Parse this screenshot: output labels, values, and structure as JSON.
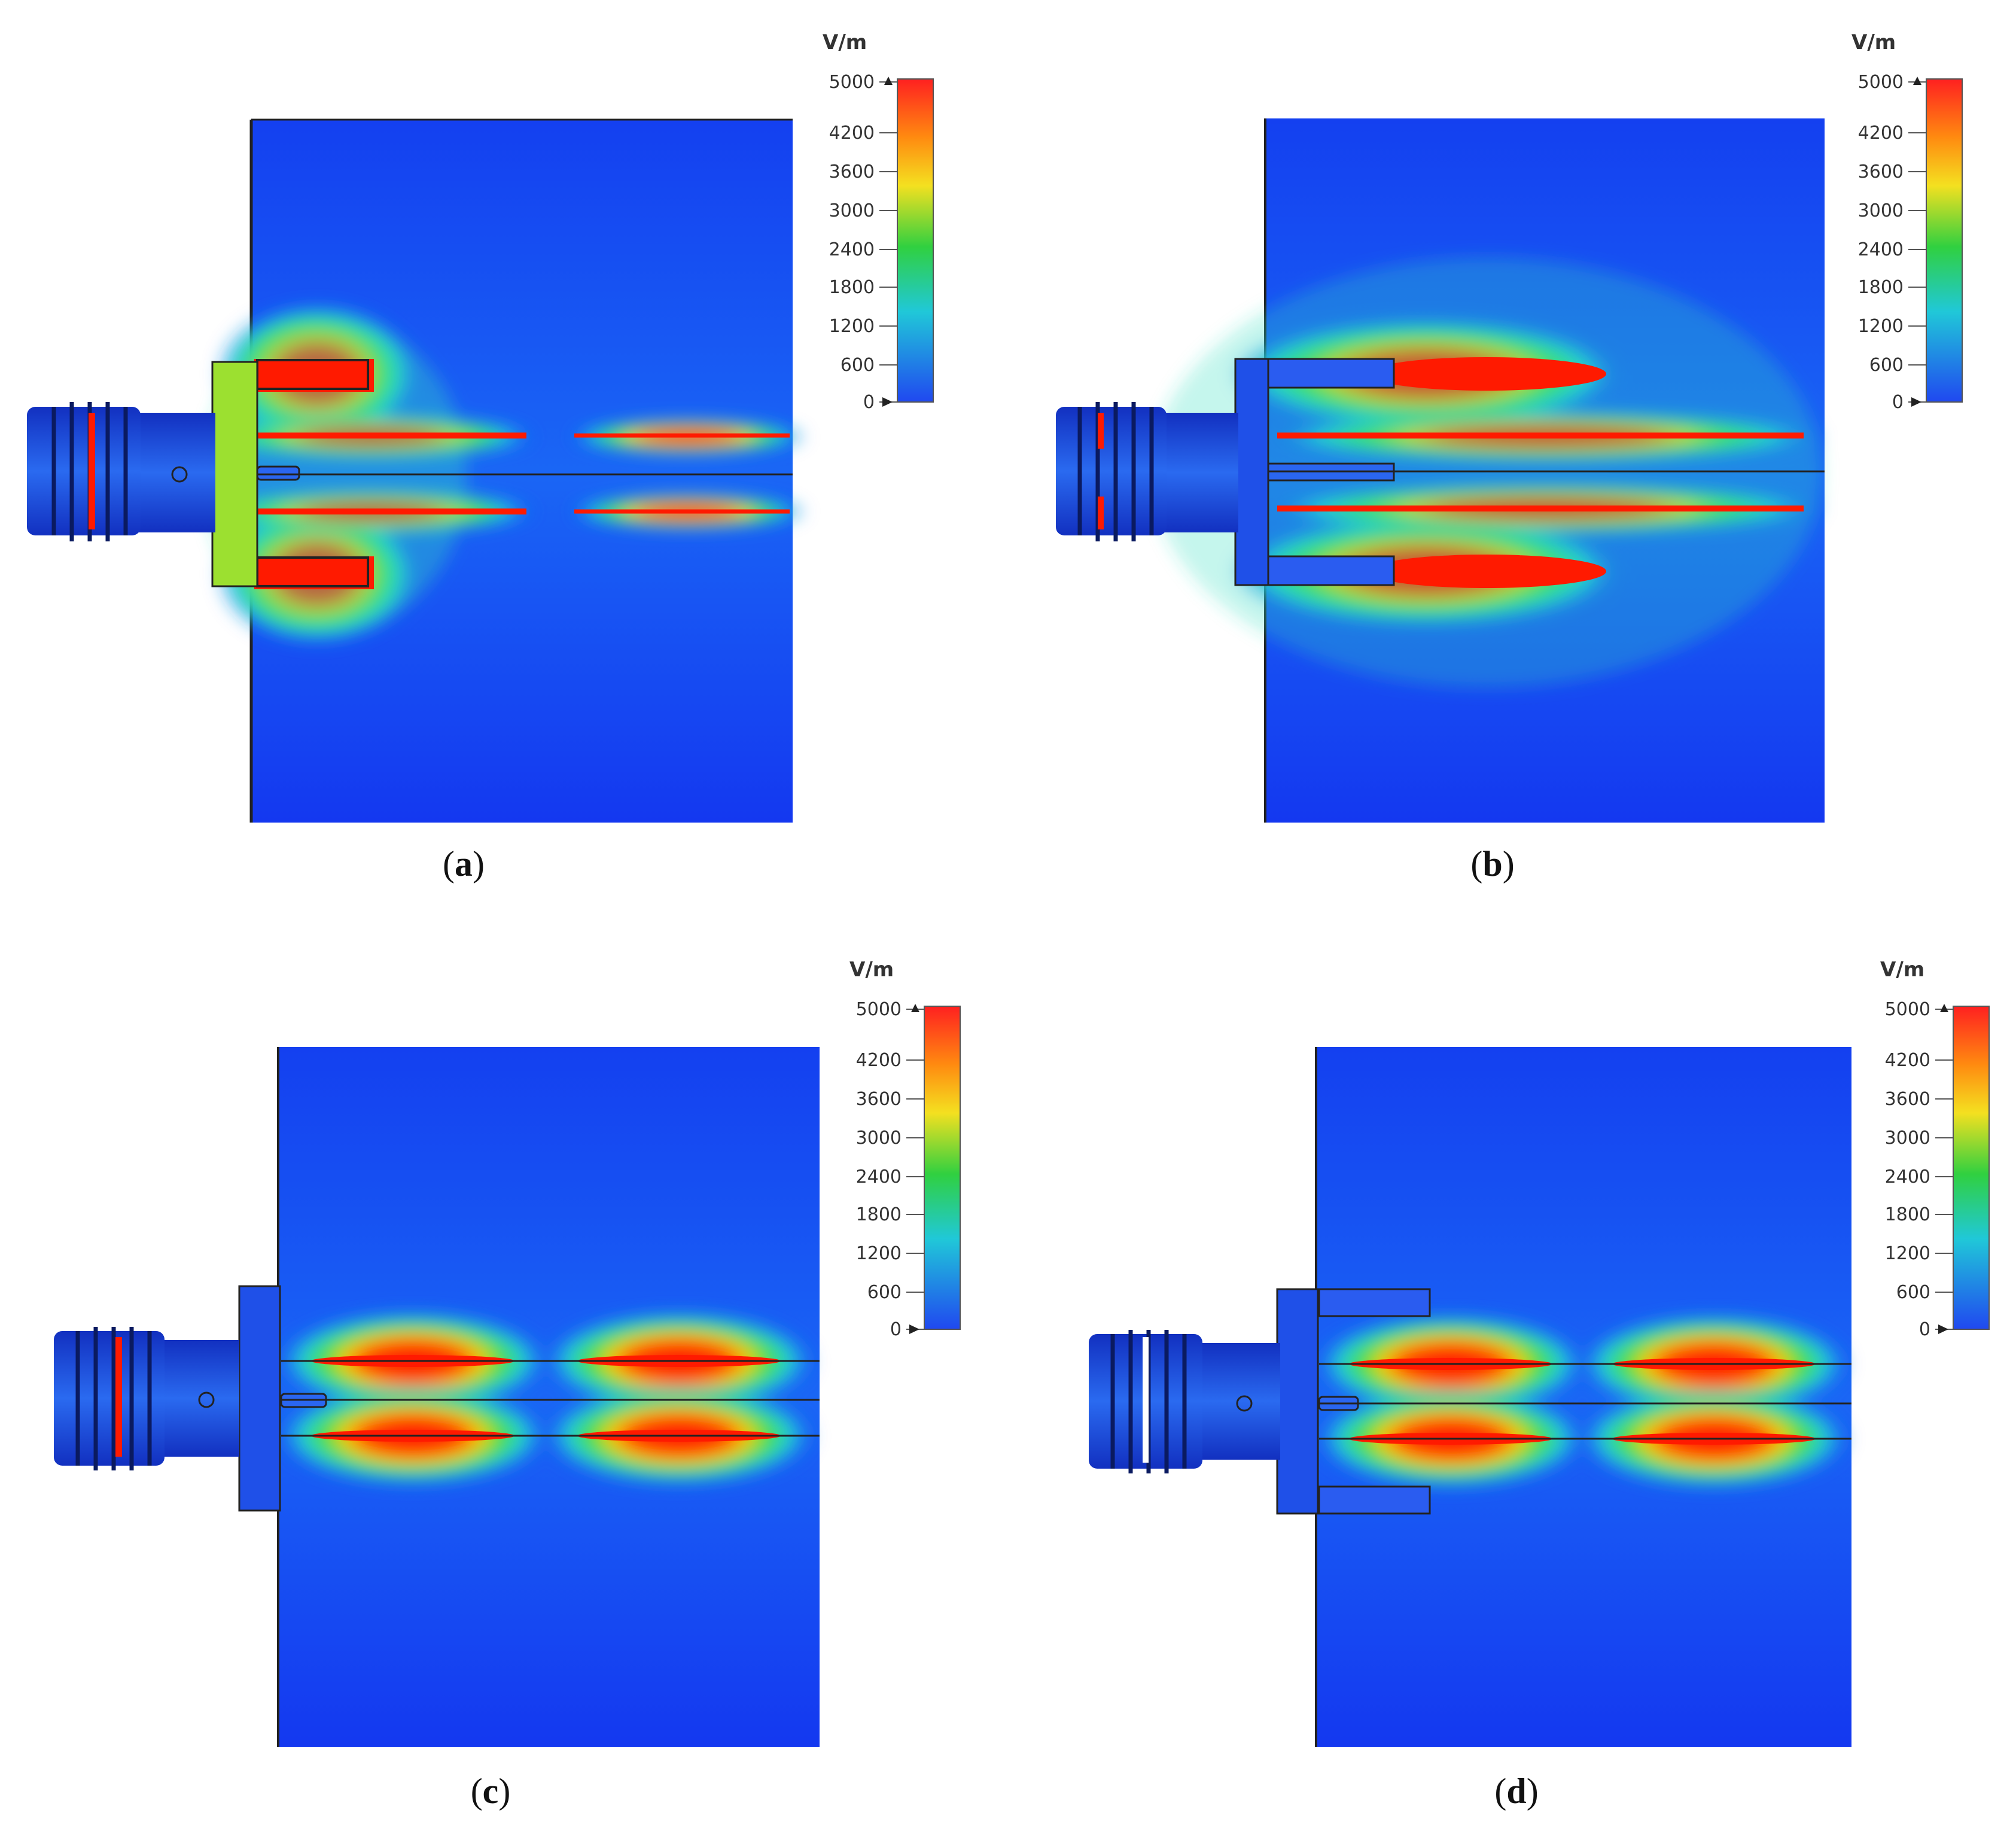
{
  "colorbar": {
    "unit": "V/m",
    "ticks": [
      "5000",
      "4200",
      "3600",
      "3000",
      "2400",
      "1800",
      "1200",
      "600",
      "0"
    ]
  },
  "panels": [
    {
      "id": "a",
      "label": "a"
    },
    {
      "id": "b",
      "label": "b"
    },
    {
      "id": "c",
      "label": "c"
    },
    {
      "id": "d",
      "label": "d"
    }
  ],
  "colors": {
    "field_low": "#1030e8",
    "field_mid": "#22cc44",
    "field_high": "#ff2a10"
  }
}
